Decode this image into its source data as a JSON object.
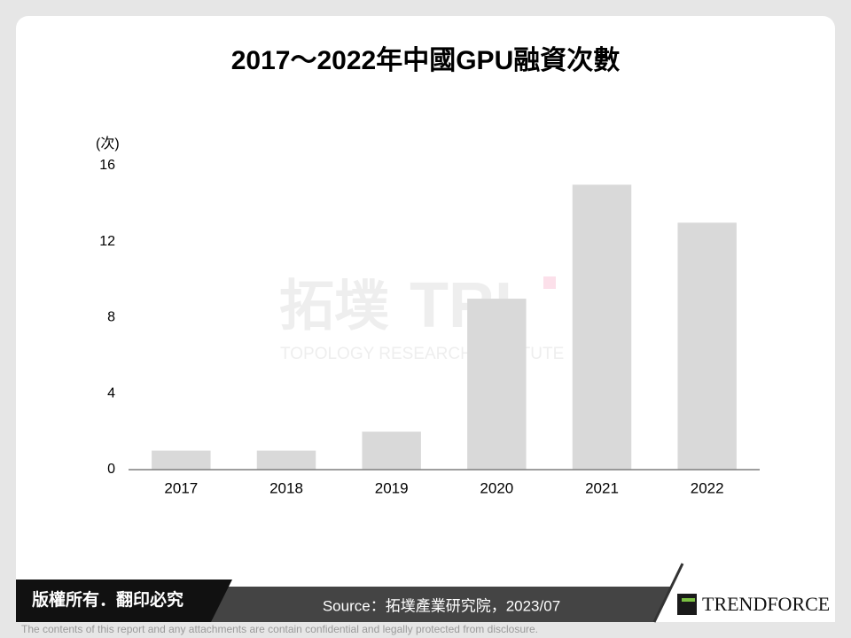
{
  "chart_data": {
    "type": "bar",
    "title": "2017～2022年中國GPU融資次數",
    "y_unit": "(次)",
    "categories": [
      "2017",
      "2018",
      "2019",
      "2020",
      "2021",
      "2022"
    ],
    "values": [
      1,
      1,
      2,
      9,
      15,
      13
    ],
    "color": "#d9d9d9",
    "ylim": [
      0,
      16
    ],
    "yticks": [
      0,
      4,
      8,
      12,
      16
    ],
    "grid": false
  },
  "watermark": {
    "logo": "拓墣",
    "mark": "TRI",
    "name": "TOPOLOGY RESEARCH INSTITUTE"
  },
  "footer": {
    "copyright": "版權所有．翻印必究",
    "source": "Source：拓墣產業研究院，2023/07",
    "brand": "TRENDFORCE",
    "disclaimer": "The contents of this report and any attachments are contain confidential and legally protected from disclosure."
  }
}
